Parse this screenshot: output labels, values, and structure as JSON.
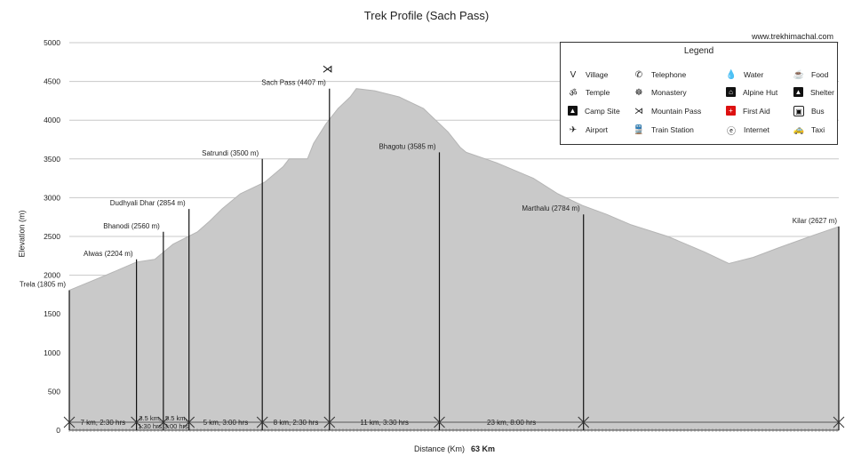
{
  "chart_data": {
    "type": "area",
    "title": "Trek Profile (Sach Pass)",
    "xlabel": "Distance (Km)",
    "total_distance": "63 Km",
    "ylabel": "Elevation (m)",
    "ylim": [
      0,
      5000
    ],
    "xlim": [
      0,
      63
    ],
    "yticks": [
      "0",
      "500",
      "1000",
      "1500",
      "2000",
      "2500",
      "3000",
      "3500",
      "4000",
      "4500",
      "5000"
    ],
    "grid": true,
    "profile": [
      [
        0,
        1805
      ],
      [
        3,
        2000
      ],
      [
        5.5,
        2170
      ],
      [
        7,
        2204
      ],
      [
        8.5,
        2400
      ],
      [
        10.5,
        2560
      ],
      [
        11.5,
        2700
      ],
      [
        12.5,
        2854
      ],
      [
        14,
        3050
      ],
      [
        16,
        3200
      ],
      [
        17.5,
        3400
      ],
      [
        18,
        3500
      ],
      [
        19.5,
        3500
      ],
      [
        20,
        3700
      ],
      [
        21,
        3950
      ],
      [
        22,
        4150
      ],
      [
        23,
        4300
      ],
      [
        23.5,
        4407
      ],
      [
        25,
        4380
      ],
      [
        27,
        4300
      ],
      [
        29,
        4150
      ],
      [
        31,
        3850
      ],
      [
        32,
        3650
      ],
      [
        32.5,
        3585
      ],
      [
        35,
        3450
      ],
      [
        38,
        3250
      ],
      [
        40,
        3050
      ],
      [
        42,
        2900
      ],
      [
        44,
        2784
      ],
      [
        46,
        2650
      ],
      [
        49,
        2500
      ],
      [
        52,
        2300
      ],
      [
        54,
        2150
      ],
      [
        56,
        2230
      ],
      [
        58,
        2350
      ],
      [
        61,
        2520
      ],
      [
        63,
        2627
      ]
    ],
    "stops": [
      {
        "name": "Trela (1805 m)",
        "km": 0,
        "elev": 1805
      },
      {
        "name": "Alwas (2204 m)",
        "km": 5.5,
        "elev": 2204
      },
      {
        "name": "Bhanodi (2560 m)",
        "km": 7.7,
        "elev": 2560
      },
      {
        "name": "Dudhyali Dhar (2854 m)",
        "km": 9.8,
        "elev": 2854
      },
      {
        "name": "Satrundi (3500 m)",
        "km": 15.8,
        "elev": 3500
      },
      {
        "name": "Sach Pass (4407 m)",
        "km": 21.3,
        "elev": 4407
      },
      {
        "name": "Bhagotu (3585 m)",
        "km": 30.3,
        "elev": 3585
      },
      {
        "name": "Marthalu (2784 m)",
        "km": 42.1,
        "elev": 2784
      },
      {
        "name": "Kilar (2627 m)",
        "km": 63,
        "elev": 2627
      }
    ],
    "segments": [
      "7 km, 2:30 hrs",
      "3.5 km, 1:30 hrs",
      "5.5 km, 3:00 hrs",
      "5 km, 3:00 hrs",
      "8 km, 2:30 hrs",
      "11 km, 3:30 hrs",
      "23 km, 8:00 hrs"
    ],
    "legend_position": "top-right"
  },
  "site": "www.trekhimachal.com",
  "legend": {
    "title": "Legend",
    "items": [
      {
        "label": "Village",
        "icon": "village-icon",
        "glyph": "V"
      },
      {
        "label": "Telephone",
        "icon": "telephone-icon",
        "glyph": "✆"
      },
      {
        "label": "Water",
        "icon": "water-icon",
        "glyph": "💧"
      },
      {
        "label": "Food",
        "icon": "food-icon",
        "glyph": "☕"
      },
      {
        "label": "Temple",
        "icon": "temple-icon",
        "glyph": "ॐ"
      },
      {
        "label": "Monastery",
        "icon": "monastery-icon",
        "glyph": "☸"
      },
      {
        "label": "Alpine Hut",
        "icon": "alpine-hut-icon",
        "glyph": "⌂"
      },
      {
        "label": "Shelter",
        "icon": "shelter-icon",
        "glyph": "▲"
      },
      {
        "label": "Camp Site",
        "icon": "camp-site-icon",
        "glyph": "▲"
      },
      {
        "label": "Mountain Pass",
        "icon": "mountain-pass-icon",
        "glyph": "⋊"
      },
      {
        "label": "First Aid",
        "icon": "first-aid-icon",
        "glyph": "+"
      },
      {
        "label": "Bus",
        "icon": "bus-icon",
        "glyph": "▣"
      },
      {
        "label": "Airport",
        "icon": "airport-icon",
        "glyph": "✈"
      },
      {
        "label": "Train Station",
        "icon": "train-station-icon",
        "glyph": "🚆"
      },
      {
        "label": "Internet",
        "icon": "internet-icon",
        "glyph": "ⓔ"
      },
      {
        "label": "Taxi",
        "icon": "taxi-icon",
        "glyph": "🚕"
      }
    ]
  }
}
